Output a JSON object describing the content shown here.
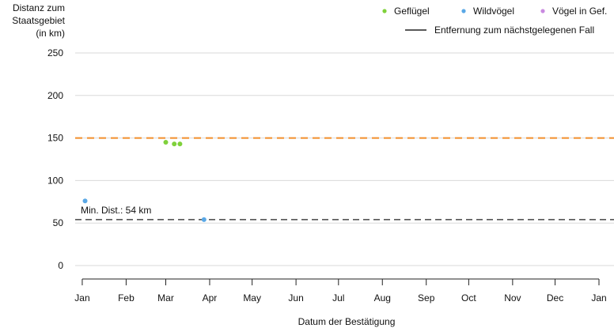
{
  "colors": {
    "gefluegel": "#7fd13b",
    "wildvoegel": "#5aa8e6",
    "voegel_in_gef": "#c98ae0",
    "reference_line": "#f28e2b",
    "min_line": "#222222",
    "grid": "#d9d9d9"
  },
  "chart_data": {
    "type": "scatter",
    "ylabel_lines": [
      "Distanz zum",
      "Staatsgebiet",
      "(in km)"
    ],
    "xlabel": "Datum der Bestätigung",
    "ylim": [
      0,
      250
    ],
    "yticks": [
      0,
      50,
      100,
      150,
      200,
      250
    ],
    "grid": true,
    "legend_position": "top-right",
    "x_ticks": [
      "2023-01-01",
      "2023-02-01",
      "2023-03-01",
      "2023-04-01",
      "2023-05-01",
      "2023-06-01",
      "2023-07-01",
      "2023-08-01",
      "2023-09-01",
      "2023-10-01",
      "2023-11-01",
      "2023-12-01",
      "2024-01-01"
    ],
    "x_tick_labels": [
      "Jan",
      "Feb",
      "Mar",
      "Apr",
      "May",
      "Jun",
      "Jul",
      "Aug",
      "Sep",
      "Oct",
      "Nov",
      "Dec",
      "Jan"
    ],
    "x_range": [
      "2022-12-27",
      "2024-01-01"
    ],
    "series": [
      {
        "name": "Geflügel",
        "color_key": "gefluegel",
        "points": [
          {
            "x": "2023-03-01",
            "y": 145
          },
          {
            "x": "2023-03-07",
            "y": 143
          },
          {
            "x": "2023-03-11",
            "y": 143
          }
        ]
      },
      {
        "name": "Wildvögel",
        "color_key": "wildvoegel",
        "points": [
          {
            "x": "2023-01-03",
            "y": 76
          },
          {
            "x": "2023-03-28",
            "y": 54
          }
        ]
      },
      {
        "name": "Vögel in Gef.",
        "color_key": "voegel_in_gef",
        "points": []
      }
    ],
    "reference_lines": [
      {
        "y": 150,
        "style": "dashed",
        "color_key": "reference_line",
        "label": ""
      },
      {
        "y": 54,
        "style": "dashed",
        "color_key": "min_line",
        "label": "Min. Dist.: 54 km"
      }
    ],
    "line_legend": "Entfernung zum nächstgelegenen Fall"
  }
}
